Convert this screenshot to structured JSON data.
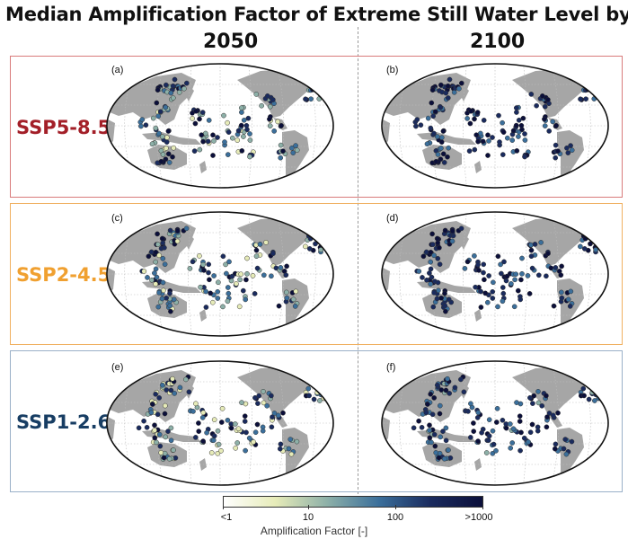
{
  "title": "Median Amplification Factor of Extreme Still Water Level by:",
  "years": [
    "2050",
    "2100"
  ],
  "scenarios": [
    {
      "label": "SSP5-8.5",
      "color": "#a31f28",
      "frame": "#d97b7b"
    },
    {
      "label": "SSP2-4.5",
      "color": "#f0a030",
      "frame": "#f0b060"
    },
    {
      "label": "SSP1-2.6",
      "color": "#173d63",
      "frame": "#9ab0c8"
    }
  ],
  "panels": [
    "(a)",
    "(b)",
    "(c)",
    "(d)",
    "(e)",
    "(f)"
  ],
  "colorbar": {
    "label": "Amplification Factor [-]",
    "ticks": [
      "<1",
      "10",
      "100",
      ">1000"
    ],
    "colors": [
      "#ffffff",
      "#e6ebb8",
      "#8db0a8",
      "#3b6f9b",
      "#1a2b5e",
      "#0b0f3a"
    ]
  }
}
